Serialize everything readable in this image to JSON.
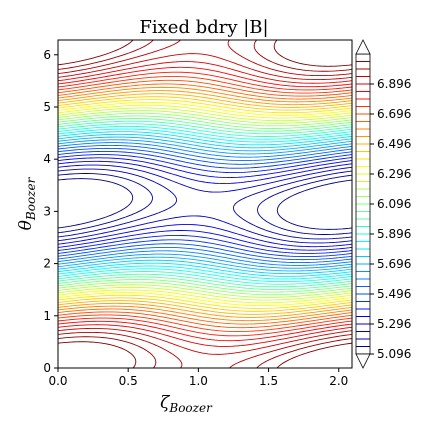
{
  "chart_data": {
    "type": "contour",
    "title": "Fixed bdry |B|",
    "xlabel": {
      "symbol": "ζ",
      "subscript": "Boozer"
    },
    "ylabel": {
      "symbol": "θ",
      "subscript": "Boozer"
    },
    "xlim": [
      0.0,
      2.0944
    ],
    "ylim": [
      0.0,
      6.2832
    ],
    "xticks": [
      {
        "value": 0.0,
        "label": "0.0"
      },
      {
        "value": 0.5,
        "label": "0.5"
      },
      {
        "value": 1.0,
        "label": "1.0"
      },
      {
        "value": 1.5,
        "label": "1.5"
      },
      {
        "value": 2.0,
        "label": "2.0"
      }
    ],
    "yticks": [
      {
        "value": 0,
        "label": "0"
      },
      {
        "value": 1,
        "label": "1"
      },
      {
        "value": 2,
        "label": "2"
      },
      {
        "value": 3,
        "label": "3"
      },
      {
        "value": 4,
        "label": "4"
      },
      {
        "value": 5,
        "label": "5"
      },
      {
        "value": 6,
        "label": "6"
      }
    ],
    "colorbar": {
      "colormap": "jet",
      "vmin": 5.096,
      "vmax": 7.096,
      "extend": "both",
      "ticks": [
        {
          "value": 5.096,
          "label": "5.096"
        },
        {
          "value": 5.296,
          "label": "5.296"
        },
        {
          "value": 5.496,
          "label": "5.496"
        },
        {
          "value": 5.696,
          "label": "5.696"
        },
        {
          "value": 5.896,
          "label": "5.896"
        },
        {
          "value": 6.096,
          "label": "6.096"
        },
        {
          "value": 6.296,
          "label": "6.296"
        },
        {
          "value": 6.496,
          "label": "6.496"
        },
        {
          "value": 6.696,
          "label": "6.696"
        },
        {
          "value": 6.896,
          "label": "6.896"
        }
      ]
    },
    "contour_levels": {
      "start": 5.096,
      "step": 0.05,
      "count": 41
    },
    "field_model": {
      "period_zeta": 2.0944,
      "mean": 6.1,
      "terms": [
        {
          "kind": "cos_theta",
          "amplitude": 1.0
        },
        {
          "kind": "cos_theta_minus_3zeta",
          "amplitude": 0.12
        }
      ]
    }
  }
}
